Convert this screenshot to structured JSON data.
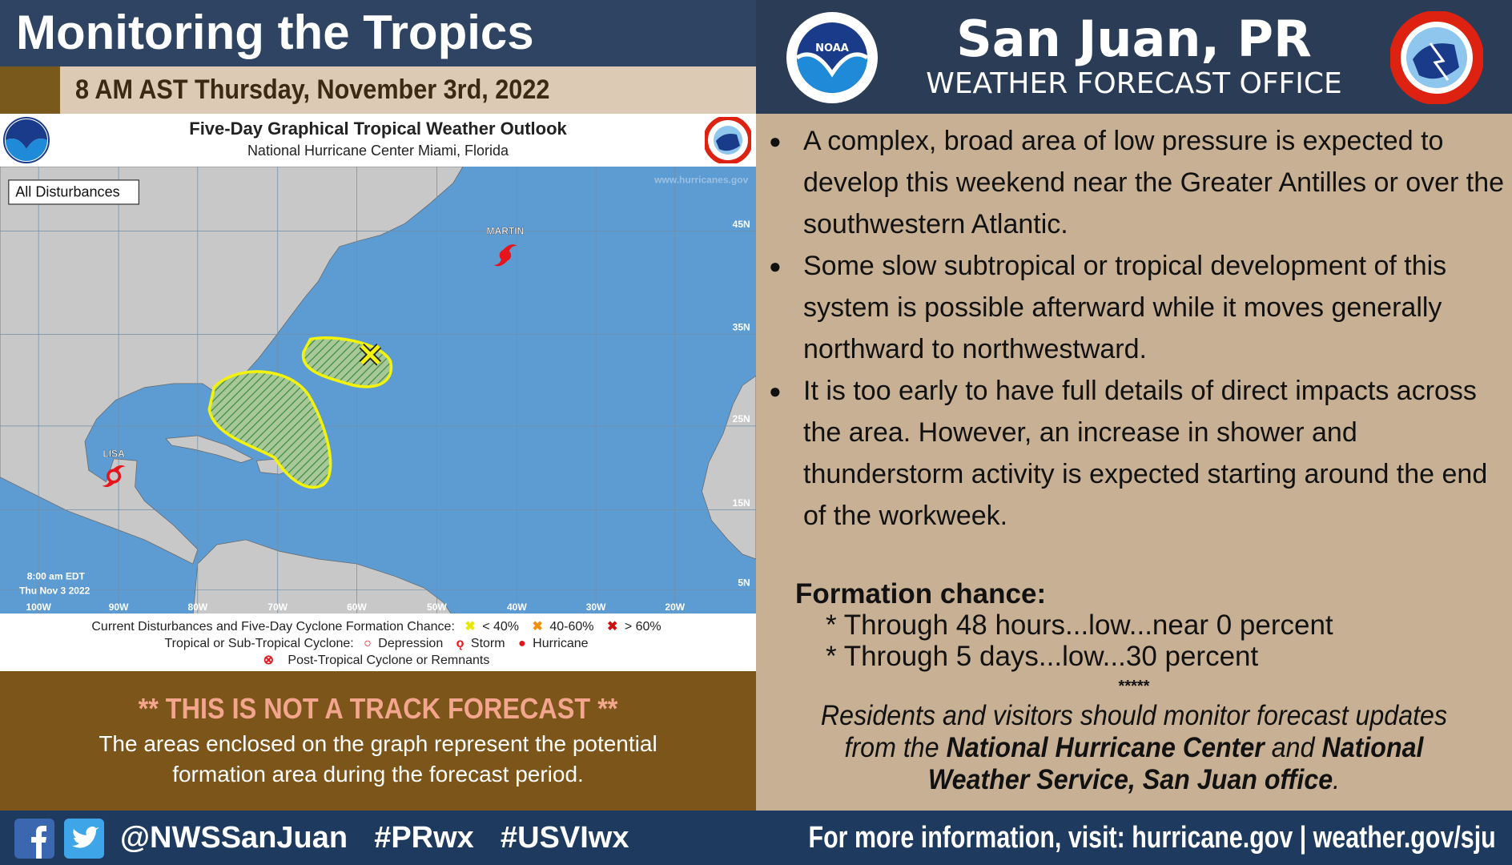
{
  "left": {
    "title": "Monitoring the Tropics",
    "date": "8 AM AST Thursday, November 3rd, 2022",
    "map": {
      "heading": "Five-Day Graphical Tropical Weather Outlook",
      "subheading": "National Hurricane Center  Miami, Florida",
      "badge": "All Disturbances",
      "watermark": "www.hurricanes.gov",
      "timestamp_line1": "8:00 am EDT",
      "timestamp_line2": "Thu Nov 3 2022",
      "storms": [
        "MARTIN",
        "LISA"
      ],
      "lon_labels": [
        "100W",
        "90W",
        "80W",
        "70W",
        "60W",
        "50W",
        "40W",
        "30W",
        "20W"
      ],
      "lat_labels": [
        "45N",
        "35N",
        "25N",
        "15N",
        "5N"
      ],
      "colors": {
        "ocean": "#5d9bd3",
        "land": "#c8c8c8",
        "area_outline": "#f2f20a",
        "hatch": "#3c8c3c",
        "storm": "#e8141c"
      }
    },
    "legend": {
      "line1_label": "Current Disturbances and Five-Day Cyclone Formation Chance:",
      "low": "< 40%",
      "medium": "40-60%",
      "high": "> 60%",
      "line2_label": "Tropical or Sub-Tropical Cyclone:",
      "depression": "Depression",
      "storm": "Storm",
      "hurricane": "Hurricane",
      "post_tropical": "Post-Tropical Cyclone or Remnants"
    },
    "warning": {
      "heading": "** THIS IS NOT A TRACK FORECAST **",
      "body": "The areas enclosed on the graph represent the potential formation area during the forecast period."
    }
  },
  "right": {
    "city": "San Juan, PR",
    "office": "WEATHER FORECAST OFFICE",
    "logo_left": "NOAA",
    "bullets": [
      "A complex, broad area of low pressure is expected to develop this weekend near the Greater Antilles or over the southwestern Atlantic.",
      "Some slow subtropical or tropical development of this system is possible afterward while it moves generally northward to northwestward.",
      "It is too early to have full details of direct impacts across the area. However, an increase in shower and thunderstorm activity is expected starting around the end of the workweek."
    ],
    "formation": {
      "heading": "Formation chance:",
      "lines": [
        "* Through 48 hours...low...near 0 percent",
        "* Through 5 days...low...30 percent"
      ]
    },
    "separator": "*****",
    "closing": {
      "part1": "Residents and visitors should monitor forecast updates from the ",
      "bold1": "National Hurricane Center",
      "part2": " and ",
      "bold2": "National Weather Service, San Juan office",
      "part3": "."
    }
  },
  "footer": {
    "handles": "@NWSSanJuan  #PRwx  #USVIwx",
    "more_info": "For more information, visit: hurricane.gov | weather.gov/sju"
  }
}
